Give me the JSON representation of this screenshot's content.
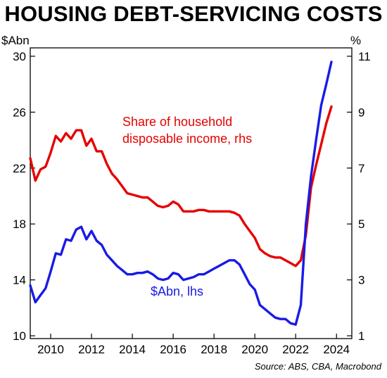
{
  "chart_data": {
    "type": "line",
    "title": "HOUSING DEBT-SERVICING COSTS",
    "left_axis_unit": "$Abn",
    "right_axis_unit": "%",
    "source": "Source: ABS, CBA, Macrobond",
    "x_ticks": [
      "2010",
      "2012",
      "2014",
      "2016",
      "2018",
      "2020",
      "2022",
      "2024"
    ],
    "y_left_ticks": [
      "10",
      "14",
      "18",
      "22",
      "26",
      "30"
    ],
    "y_right_ticks": [
      "1",
      "3",
      "5",
      "7",
      "9",
      "11"
    ],
    "xlim": [
      2009,
      2024.75
    ],
    "ylim_left": [
      9.8,
      30.6
    ],
    "ylim_right": [
      0.9,
      11.3
    ],
    "grid": false,
    "colors": {
      "debt": "#1a1ae6",
      "share": "#e60000"
    },
    "series": [
      {
        "name": "Share of household disposable income, rhs",
        "axis": "right",
        "color": "#e60000",
        "label_lines": [
          "Share of household",
          "disposable income, rhs"
        ],
        "x": [
          2009.0,
          2009.25,
          2009.5,
          2009.75,
          2010.0,
          2010.25,
          2010.5,
          2010.75,
          2011.0,
          2011.25,
          2011.5,
          2011.75,
          2012.0,
          2012.25,
          2012.5,
          2012.75,
          2013.0,
          2013.25,
          2013.5,
          2013.75,
          2014.0,
          2014.25,
          2014.5,
          2014.75,
          2015.0,
          2015.25,
          2015.5,
          2015.75,
          2016.0,
          2016.25,
          2016.5,
          2016.75,
          2017.0,
          2017.25,
          2017.5,
          2017.75,
          2018.0,
          2018.25,
          2018.5,
          2018.75,
          2019.0,
          2019.25,
          2019.5,
          2019.75,
          2020.0,
          2020.25,
          2020.5,
          2020.75,
          2021.0,
          2021.25,
          2021.5,
          2021.75,
          2022.0,
          2022.25,
          2022.5,
          2022.75,
          2023.0,
          2023.25,
          2023.5,
          2023.75
        ],
        "values": [
          7.35,
          6.55,
          6.95,
          7.05,
          7.55,
          8.15,
          7.95,
          8.25,
          8.05,
          8.35,
          8.35,
          7.8,
          8.05,
          7.6,
          7.6,
          7.15,
          6.8,
          6.6,
          6.35,
          6.1,
          6.05,
          6.0,
          5.95,
          5.95,
          5.8,
          5.65,
          5.6,
          5.65,
          5.8,
          5.7,
          5.45,
          5.45,
          5.45,
          5.5,
          5.5,
          5.45,
          5.45,
          5.45,
          5.45,
          5.45,
          5.4,
          5.3,
          5.0,
          4.75,
          4.5,
          4.1,
          3.95,
          3.85,
          3.8,
          3.8,
          3.7,
          3.6,
          3.5,
          3.7,
          4.6,
          6.3,
          7.1,
          7.85,
          8.6,
          9.2
        ]
      },
      {
        "name": "$Abn, lhs",
        "axis": "left",
        "color": "#1a1ae6",
        "label_lines": [
          "$Abn, lhs"
        ],
        "x": [
          2009.0,
          2009.25,
          2009.5,
          2009.75,
          2010.0,
          2010.25,
          2010.5,
          2010.75,
          2011.0,
          2011.25,
          2011.5,
          2011.75,
          2012.0,
          2012.25,
          2012.5,
          2012.75,
          2013.0,
          2013.25,
          2013.5,
          2013.75,
          2014.0,
          2014.25,
          2014.5,
          2014.75,
          2015.0,
          2015.25,
          2015.5,
          2015.75,
          2016.0,
          2016.25,
          2016.5,
          2016.75,
          2017.0,
          2017.25,
          2017.5,
          2017.75,
          2018.0,
          2018.25,
          2018.5,
          2018.75,
          2019.0,
          2019.25,
          2019.5,
          2019.75,
          2020.0,
          2020.25,
          2020.5,
          2020.75,
          2021.0,
          2021.25,
          2021.5,
          2021.75,
          2022.0,
          2022.25,
          2022.5,
          2022.75,
          2023.0,
          2023.25,
          2023.5,
          2023.75
        ],
        "values": [
          13.6,
          12.4,
          12.9,
          13.4,
          14.6,
          15.9,
          15.8,
          16.9,
          16.8,
          17.6,
          17.8,
          16.9,
          17.5,
          16.8,
          16.5,
          15.8,
          15.4,
          15.0,
          14.7,
          14.4,
          14.4,
          14.5,
          14.5,
          14.6,
          14.4,
          14.1,
          14.0,
          14.1,
          14.5,
          14.4,
          14.0,
          14.1,
          14.2,
          14.4,
          14.4,
          14.6,
          14.8,
          15.0,
          15.2,
          15.4,
          15.4,
          15.1,
          14.4,
          13.7,
          13.3,
          12.2,
          11.9,
          11.6,
          11.3,
          11.2,
          11.2,
          10.9,
          10.8,
          12.2,
          18.0,
          21.4,
          24.0,
          26.5,
          28.0,
          29.6
        ]
      }
    ]
  }
}
